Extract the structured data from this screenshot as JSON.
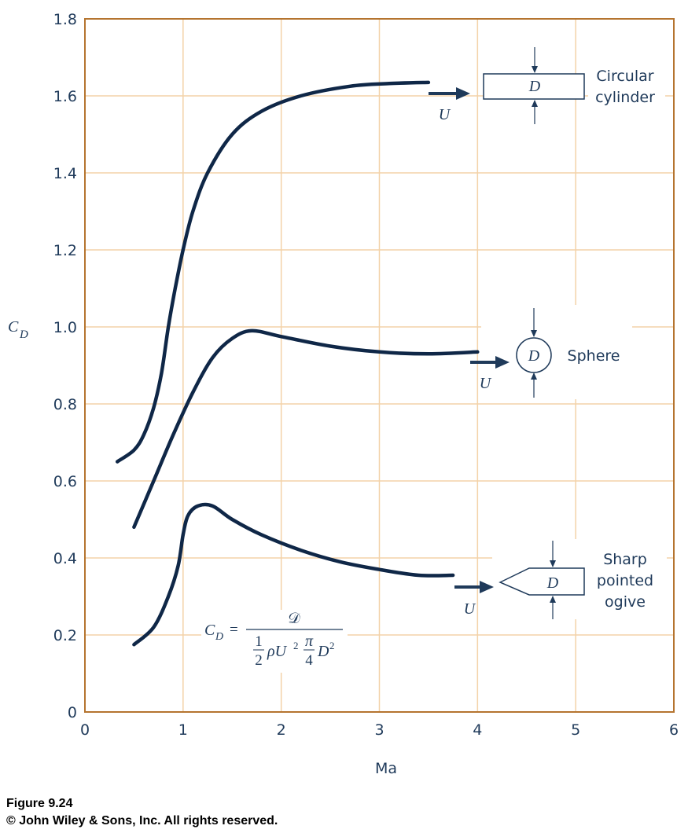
{
  "chart_data": {
    "type": "line",
    "xlabel": "Ma",
    "ylabel": "C",
    "ylabel_sub": "D",
    "xlim": [
      0,
      6
    ],
    "ylim": [
      0,
      1.8
    ],
    "x_ticks": [
      "0",
      "1",
      "2",
      "3",
      "4",
      "5",
      "6"
    ],
    "y_ticks": [
      "0",
      "0.2",
      "0.4",
      "0.6",
      "0.8",
      "1.0",
      "1.2",
      "1.4",
      "1.6",
      "1.8"
    ],
    "grid": true,
    "series": [
      {
        "name": "Circular cylinder",
        "label_lines": [
          "Circular",
          "cylinder"
        ],
        "points": [
          [
            0.33,
            0.65
          ],
          [
            0.5,
            0.68
          ],
          [
            0.6,
            0.72
          ],
          [
            0.7,
            0.79
          ],
          [
            0.78,
            0.88
          ],
          [
            0.85,
            1.0
          ],
          [
            0.92,
            1.1
          ],
          [
            1.0,
            1.2
          ],
          [
            1.1,
            1.3
          ],
          [
            1.25,
            1.4
          ],
          [
            1.5,
            1.5
          ],
          [
            1.8,
            1.56
          ],
          [
            2.2,
            1.6
          ],
          [
            2.7,
            1.625
          ],
          [
            3.1,
            1.632
          ],
          [
            3.5,
            1.635
          ]
        ]
      },
      {
        "name": "Sphere",
        "label_lines": [
          "Sphere"
        ],
        "points": [
          [
            0.5,
            0.48
          ],
          [
            0.7,
            0.6
          ],
          [
            0.9,
            0.72
          ],
          [
            1.1,
            0.83
          ],
          [
            1.3,
            0.92
          ],
          [
            1.5,
            0.97
          ],
          [
            1.7,
            0.99
          ],
          [
            2.0,
            0.975
          ],
          [
            2.5,
            0.95
          ],
          [
            3.0,
            0.935
          ],
          [
            3.5,
            0.93
          ],
          [
            4.0,
            0.935
          ]
        ]
      },
      {
        "name": "Sharp pointed ogive",
        "label_lines": [
          "Sharp",
          "pointed",
          "ogive"
        ],
        "points": [
          [
            0.5,
            0.175
          ],
          [
            0.7,
            0.22
          ],
          [
            0.85,
            0.3
          ],
          [
            0.95,
            0.38
          ],
          [
            1.0,
            0.46
          ],
          [
            1.05,
            0.51
          ],
          [
            1.15,
            0.535
          ],
          [
            1.3,
            0.535
          ],
          [
            1.5,
            0.5
          ],
          [
            1.8,
            0.46
          ],
          [
            2.2,
            0.42
          ],
          [
            2.6,
            0.39
          ],
          [
            3.0,
            0.37
          ],
          [
            3.4,
            0.355
          ],
          [
            3.75,
            0.355
          ]
        ]
      }
    ],
    "flow_label": "U",
    "body_label": "D",
    "formula": {
      "lhs": "C",
      "lhs_sub": "D",
      "numerator": "𝒟",
      "denominator_parts": [
        "1",
        "2",
        "ρU",
        "2",
        "π",
        "4",
        "D",
        "2"
      ]
    }
  },
  "caption": {
    "figure": "Figure 9.24",
    "copyright": "© John Wiley & Sons, Inc. All rights reserved."
  }
}
